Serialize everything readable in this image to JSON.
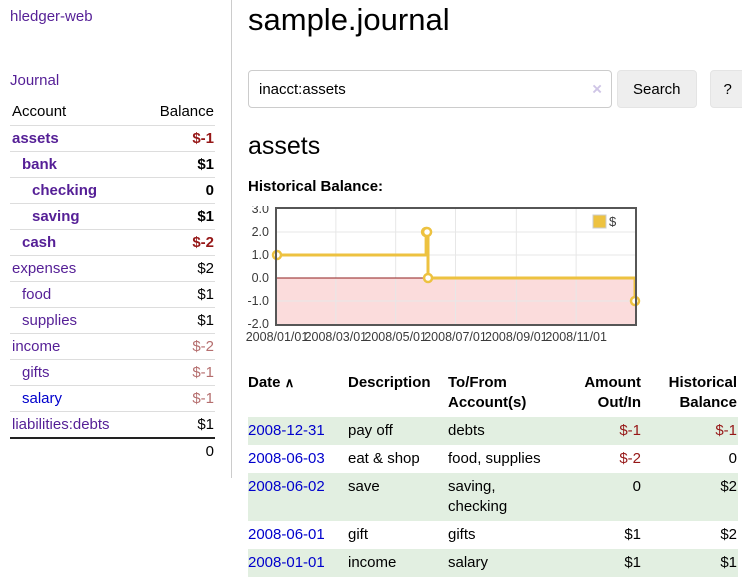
{
  "app": {
    "title": "hledger-web"
  },
  "sidebar": {
    "journal_link": "Journal",
    "accounts": {
      "header": {
        "account": "Account",
        "balance": "Balance"
      },
      "rows": [
        {
          "name": "assets",
          "balance": "$-1",
          "depth": 1,
          "bold": true,
          "balance_class": "neg-strong"
        },
        {
          "name": "bank",
          "balance": "$1",
          "depth": 2,
          "bold": true,
          "balance_class": ""
        },
        {
          "name": "checking",
          "balance": "0",
          "depth": 3,
          "bold": true,
          "balance_class": ""
        },
        {
          "name": "saving",
          "balance": "$1",
          "depth": 3,
          "bold": true,
          "balance_class": ""
        },
        {
          "name": "cash",
          "balance": "$-2",
          "depth": 2,
          "bold": true,
          "balance_class": "neg-strong"
        },
        {
          "name": "expenses",
          "balance": "$2",
          "depth": 1,
          "bold": false,
          "balance_class": ""
        },
        {
          "name": "food",
          "balance": "$1",
          "depth": 2,
          "bold": false,
          "balance_class": ""
        },
        {
          "name": "supplies",
          "balance": "$1",
          "depth": 2,
          "bold": false,
          "balance_class": ""
        },
        {
          "name": "income",
          "balance": "$-2",
          "depth": 1,
          "bold": false,
          "balance_class": "neg-soft"
        },
        {
          "name": "gifts",
          "balance": "$-1",
          "depth": 2,
          "bold": false,
          "balance_class": "neg-soft"
        },
        {
          "name": "salary",
          "balance": "$-1",
          "depth": 2,
          "bold": false,
          "balance_class": "neg-soft",
          "link_class": "blue"
        },
        {
          "name": "liabilities:debts",
          "balance": "$1",
          "depth": 1,
          "bold": false,
          "balance_class": ""
        }
      ],
      "total": "0"
    }
  },
  "main": {
    "title": "sample.journal",
    "search": {
      "value": "inacct:assets",
      "clear_label": "×",
      "button": "Search",
      "help": "?"
    },
    "heading": "assets",
    "chart_title": "Historical Balance:"
  },
  "chart_data": {
    "type": "line",
    "style": "step",
    "title": "Historical Balance",
    "series": [
      {
        "name": "$",
        "color": "#edc240",
        "points": [
          [
            "2008-01-01",
            1
          ],
          [
            "2008-06-01",
            2
          ],
          [
            "2008-06-02",
            2
          ],
          [
            "2008-06-03",
            0
          ],
          [
            "2008-12-31",
            -1
          ]
        ]
      }
    ],
    "x_range": [
      "2008-01-01",
      "2008-12-31"
    ],
    "x_tick_dates": [
      "2008-01-01",
      "2008-03-01",
      "2008-05-01",
      "2008-07-01",
      "2008-09-01",
      "2008-11-01"
    ],
    "x_tick_labels": [
      "2008/01/01",
      "2008/03/01",
      "2008/05/01",
      "2008/07/01",
      "2008/09/01",
      "2008/11/01"
    ],
    "y_ticks": [
      3,
      2,
      1,
      0,
      -1,
      -2
    ],
    "y_tick_labels": [
      "3.0",
      "2.0",
      "1.0",
      "0.0",
      "-1.0",
      "-2.0"
    ],
    "ylim": [
      -2,
      3
    ],
    "legend": {
      "label": "$",
      "position": "top-right"
    },
    "grid": true,
    "negative_region_color": "#fbdcdc",
    "zero_line_color": "#8f1e1e",
    "border_color": "#565656",
    "gridline_color": "#e7e7e7",
    "tick_label_color": "#3a3a3a"
  },
  "register": {
    "headers": {
      "date": "Date",
      "sort_icon": "∧",
      "description": "Description",
      "accounts": "To/From Account(s)",
      "amount": "Amount Out/In",
      "balance": "Historical Balance"
    },
    "rows": [
      {
        "date": "2008-12-31",
        "description": "pay off",
        "accounts": "debts",
        "amount": "$-1",
        "amount_neg": true,
        "balance": "$-1",
        "balance_neg": true
      },
      {
        "date": "2008-06-03",
        "description": "eat & shop",
        "accounts": "food, supplies",
        "amount": "$-2",
        "amount_neg": true,
        "balance": "0",
        "balance_neg": false
      },
      {
        "date": "2008-06-02",
        "description": "save",
        "accounts": "saving, checking",
        "amount": "0",
        "amount_neg": false,
        "balance": "$2",
        "balance_neg": false
      },
      {
        "date": "2008-06-01",
        "description": "gift",
        "accounts": "gifts",
        "amount": "$1",
        "amount_neg": false,
        "balance": "$2",
        "balance_neg": false
      },
      {
        "date": "2008-01-01",
        "description": "income",
        "accounts": "salary",
        "amount": "$1",
        "amount_neg": false,
        "balance": "$1",
        "balance_neg": false
      }
    ]
  },
  "colors": {
    "link_purple": "#551f96",
    "link_blue": "#0000cc",
    "negative_strong": "#961717",
    "negative_soft": "#b56e6e",
    "row_stripe_green": "#e2efe1",
    "chart_line": "#edc240"
  }
}
